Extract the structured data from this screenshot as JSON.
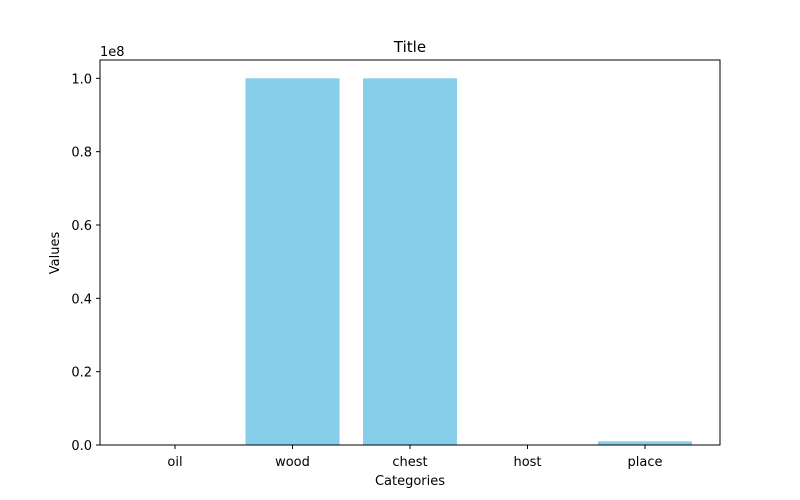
{
  "chart_data": {
    "type": "bar",
    "title": "Title",
    "xlabel": "Categories",
    "ylabel": "Values",
    "scale_label": "1e8",
    "categories": [
      "oil",
      "wood",
      "chest",
      "host",
      "place"
    ],
    "values": [
      0,
      100000000,
      100000000,
      0,
      1000000
    ],
    "ylim": [
      0,
      105000000
    ],
    "yticks": [
      0,
      20000000,
      40000000,
      60000000,
      80000000,
      100000000
    ],
    "ytick_labels": [
      "0.0",
      "0.2",
      "0.4",
      "0.6",
      "0.8",
      "1.0"
    ],
    "bar_color": "#87ceeb",
    "grid": false,
    "legend": "none"
  }
}
